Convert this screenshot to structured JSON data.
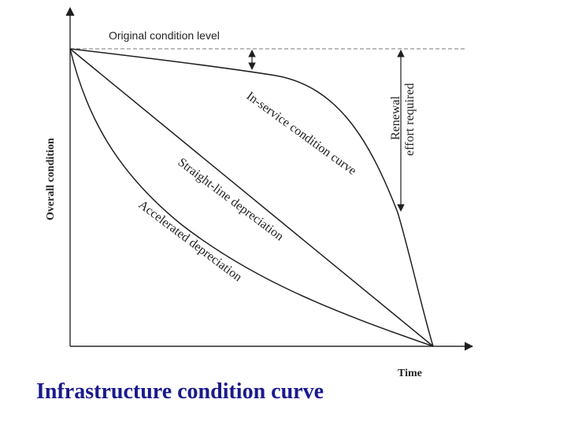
{
  "diagram": {
    "original_level_label": "Original condition level",
    "y_axis_label": "Overall condition",
    "x_axis_label": "Time",
    "in_service_label": "In-service condition curve",
    "straight_line_label": "Straight-line depreciation",
    "accelerated_label": "Accelerated depreciation",
    "renewal_line1": "Renewal",
    "renewal_line2": "effort required"
  },
  "caption": {
    "text": "Infrastructure condition curve",
    "color": "#1a1a8c"
  }
}
